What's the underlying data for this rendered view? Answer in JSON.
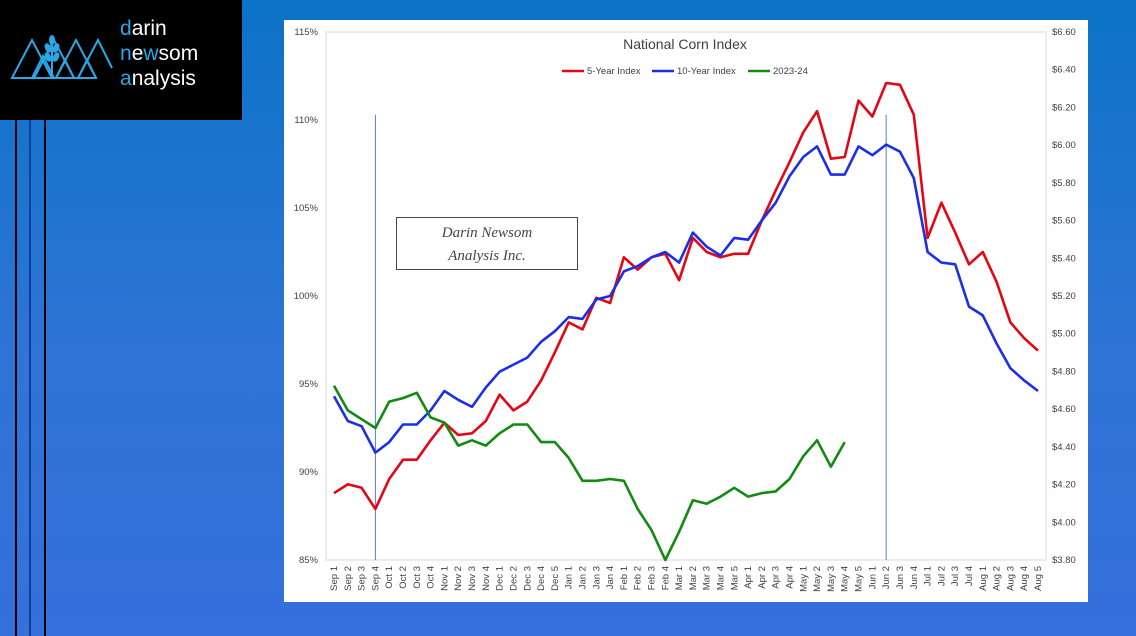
{
  "logo": {
    "line1_accent": "d",
    "line1_rest": "arin",
    "line2_accent1": "n",
    "line2_mid": "e",
    "line2_accent2": "w",
    "line2_rest": "som",
    "line3_accent": "a",
    "line3_rest": "nalysis"
  },
  "watermark": {
    "line1": "Darin Newsom",
    "line2": "Analysis Inc."
  },
  "colors": {
    "five_year": "#e30613",
    "ten_year": "#1a2fe6",
    "current": "#138a13",
    "marker": "#5a7fc0"
  },
  "chart_data": {
    "type": "line",
    "title": "National Corn Index",
    "categories": [
      "Sep 1",
      "Sep 2",
      "Sep 3",
      "Sep 4",
      "Oct 1",
      "Oct 2",
      "Oct 3",
      "Oct 4",
      "Nov 1",
      "Nov 2",
      "Nov 3",
      "Nov 4",
      "Dec 1",
      "Dec 2",
      "Dec 3",
      "Dec 4",
      "Dec 5",
      "Jan 1",
      "Jan 2",
      "Jan 3",
      "Jan 4",
      "Feb 1",
      "Feb 2",
      "Feb 3",
      "Feb 4",
      "Mar 1",
      "Mar 2",
      "Mar 3",
      "Mar 4",
      "Mar 5",
      "Apr 1",
      "Apr 2",
      "Apr 3",
      "Apr 4",
      "May 1",
      "May 2",
      "May 3",
      "May 4",
      "May 5",
      "Jun 1",
      "Jun 2",
      "Jun 3",
      "Jun 4",
      "Jul 1",
      "Jul 2",
      "Jul 3",
      "Jul 4",
      "Aug 1",
      "Aug 2",
      "Aug 3",
      "Aug 4",
      "Aug 5"
    ],
    "left_axis": {
      "ylim": [
        85,
        115
      ],
      "ticks": [
        "85%",
        "90%",
        "95%",
        "100%",
        "105%",
        "110%",
        "115%"
      ],
      "tick_values": [
        85,
        90,
        95,
        100,
        105,
        110,
        115
      ]
    },
    "right_axis": {
      "ylim": [
        3.8,
        6.6
      ],
      "ticks": [
        "$3.80",
        "$4.00",
        "$4.20",
        "$4.40",
        "$4.60",
        "$4.80",
        "$5.00",
        "$5.20",
        "$5.40",
        "$5.60",
        "$5.80",
        "$6.00",
        "$6.20",
        "$6.40",
        "$6.60"
      ],
      "tick_values": [
        3.8,
        4.0,
        4.2,
        4.4,
        4.6,
        4.8,
        5.0,
        5.2,
        5.4,
        5.6,
        5.8,
        6.0,
        6.2,
        6.4,
        6.6
      ]
    },
    "vertical_markers": [
      "Sep 4",
      "Jun 2"
    ],
    "legend_position": "top-center",
    "series": [
      {
        "name": "5-Year Index",
        "color": "#e30613",
        "values": [
          88.8,
          89.3,
          89.1,
          87.9,
          89.6,
          90.7,
          90.7,
          91.8,
          92.8,
          92.1,
          92.2,
          92.9,
          94.4,
          93.5,
          94.0,
          95.2,
          96.8,
          98.5,
          98.1,
          99.9,
          99.6,
          102.2,
          101.5,
          102.2,
          102.4,
          100.9,
          103.3,
          102.5,
          102.2,
          102.4,
          102.4,
          104.3,
          106.0,
          107.6,
          109.3,
          110.5,
          107.8,
          107.9,
          111.1,
          110.2,
          112.1,
          112.0,
          110.3,
          103.3,
          105.3,
          103.6,
          101.8,
          102.5,
          100.8,
          98.5,
          97.6,
          96.9
        ]
      },
      {
        "name": "10-Year Index",
        "color": "#1a2fe6",
        "values": [
          94.3,
          92.9,
          92.6,
          91.1,
          91.7,
          92.7,
          92.7,
          93.5,
          94.6,
          94.1,
          93.7,
          94.8,
          95.7,
          96.1,
          96.5,
          97.4,
          98.0,
          98.8,
          98.7,
          99.8,
          100.0,
          101.4,
          101.7,
          102.2,
          102.5,
          101.9,
          103.6,
          102.8,
          102.3,
          103.3,
          103.2,
          104.3,
          105.3,
          106.8,
          107.9,
          108.5,
          106.9,
          106.9,
          108.5,
          108.0,
          108.6,
          108.2,
          106.7,
          102.5,
          101.9,
          101.8,
          99.4,
          98.9,
          97.3,
          95.9,
          95.2,
          94.6
        ]
      },
      {
        "name": "2023-24",
        "color": "#138a13",
        "values": [
          94.9,
          93.5,
          93.0,
          92.5,
          94.0,
          94.2,
          94.5,
          93.1,
          92.8,
          91.5,
          91.8,
          91.5,
          92.2,
          92.7,
          92.7,
          91.7,
          91.7,
          90.8,
          89.5,
          89.5,
          89.6,
          89.5,
          87.9,
          86.7,
          85.0,
          86.6,
          88.4,
          88.2,
          88.6,
          89.1,
          88.6,
          88.8,
          88.9,
          89.6,
          90.9,
          91.8,
          90.3,
          91.7,
          null,
          null,
          null,
          null,
          null,
          null,
          null,
          null,
          null,
          null,
          null,
          null,
          null,
          null
        ]
      }
    ]
  }
}
